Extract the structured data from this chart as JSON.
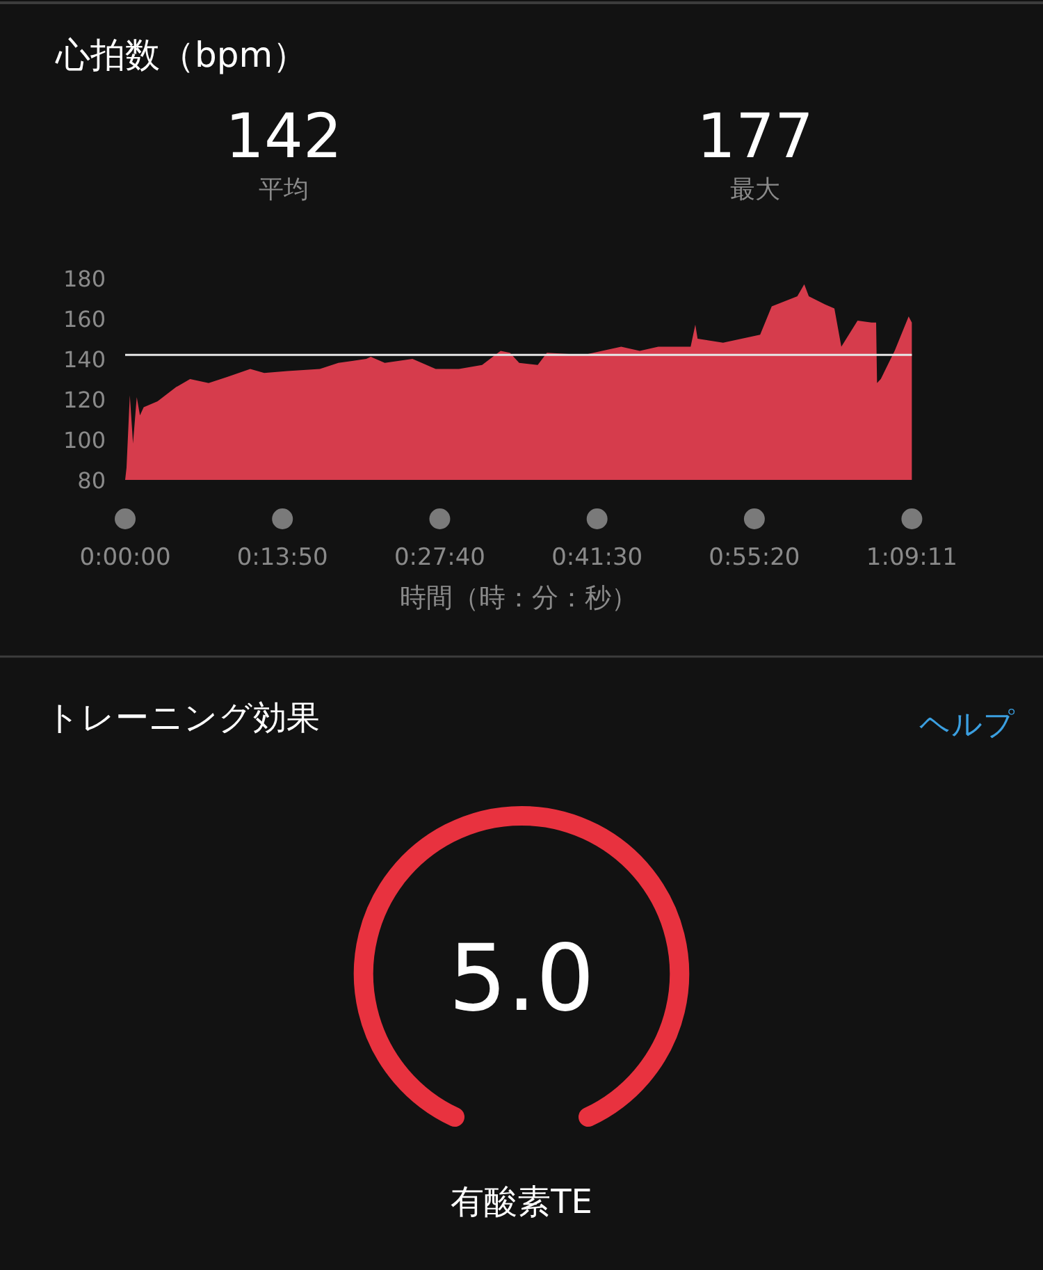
{
  "chart_data": [
    {
      "type": "area",
      "title": "心拍数（bpm）",
      "xlabel": "時間（時：分：秒）",
      "annotations": [
        "142",
        "平均",
        "177",
        "最大"
      ],
      "color": "#d63c4c",
      "x": [
        0,
        0.12,
        0.41,
        0.69,
        1.02,
        1.3,
        1.63,
        2.85,
        4.48,
        5.71,
        7.34,
        8.97,
        11.0,
        12.23,
        14.27,
        17.12,
        18.75,
        21.2,
        21.6,
        22.83,
        25.27,
        27.31,
        29.35,
        31.39,
        33.02,
        33.84,
        34.65,
        36.28,
        37.09,
        40.35,
        43.62,
        45.25,
        46.88,
        49.73,
        50.14,
        50.34,
        52.58,
        54.21,
        55.84,
        56.86,
        59.11,
        59.72,
        60.12,
        61.55,
        62.37,
        62.98,
        64.41,
        65.63,
        66.04,
        66.12,
        66.45,
        67.67,
        68.9,
        69.18
      ],
      "values": [
        80,
        86,
        122,
        98,
        121,
        112,
        116,
        119,
        126,
        130,
        128,
        131,
        135,
        133,
        134,
        135,
        138,
        140,
        141,
        138,
        140,
        135,
        135,
        137,
        144,
        143,
        138,
        137,
        143,
        142,
        146,
        144,
        146,
        146,
        157,
        150,
        148,
        150,
        152,
        166,
        171,
        177,
        171,
        167,
        165,
        146,
        159,
        158,
        158,
        128,
        130,
        144,
        161,
        158
      ],
      "xlim": [
        0,
        69.183
      ],
      "ylim": [
        80,
        180
      ],
      "yticks": [
        80,
        100,
        120,
        140,
        160,
        180
      ],
      "xticks": [
        {
          "value": 0,
          "label": "0:00:00"
        },
        {
          "value": 13.833,
          "label": "0:13:50"
        },
        {
          "value": 27.667,
          "label": "0:27:40"
        },
        {
          "value": 41.5,
          "label": "0:41:30"
        },
        {
          "value": 55.333,
          "label": "0:55:20"
        },
        {
          "value": 69.183,
          "label": "1:09:11"
        }
      ],
      "ref_lines": [
        {
          "axis": "y",
          "value": 142,
          "color": "#e6e6e6"
        }
      ]
    },
    {
      "type": "other",
      "title": "トレーニング効果",
      "annotations": [
        "ヘルプ",
        "5.0",
        "有酸素TE"
      ]
    }
  ]
}
